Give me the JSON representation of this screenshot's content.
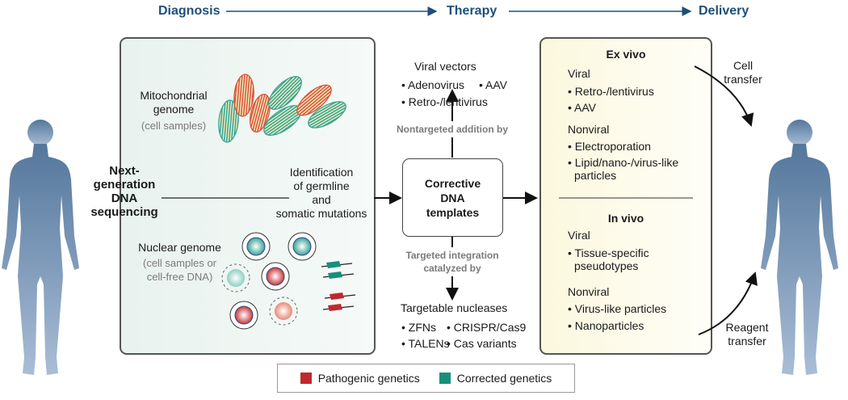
{
  "header": {
    "stages": [
      "Diagnosis",
      "Therapy",
      "Delivery"
    ]
  },
  "colors": {
    "header": "#1d4f7a",
    "pathogenic": "#c0282d",
    "corrected": "#16907a",
    "human": "#5d82a8"
  },
  "diagnosis": {
    "ngs": [
      "Next-",
      "generation",
      "DNA",
      "sequencing"
    ],
    "mito": {
      "title": [
        "Mitochondrial",
        "genome"
      ],
      "note": "(cell samples)"
    },
    "nuclear": {
      "title": "Nuclear genome",
      "note": [
        "(cell samples or",
        "cell-free DNA)"
      ]
    },
    "identification": [
      "Identification",
      "of germline",
      "and",
      "somatic mutations"
    ]
  },
  "therapy": {
    "center": [
      "Corrective",
      "DNA",
      "templates"
    ],
    "nontargeted": "Nontargeted addition by",
    "viral_vectors": {
      "title": "Viral vectors",
      "items": [
        "• Adenovirus",
        "• AAV",
        "• Retro-/lentivirus"
      ]
    },
    "targeted": [
      "Targeted integration",
      "catalyzed by"
    ],
    "nucleases": {
      "title": "Targetable nucleases",
      "items": [
        "• ZFNs",
        "• CRISPR/Cas9",
        "• TALENs",
        "• Cas variants"
      ]
    }
  },
  "delivery": {
    "ex_vivo": {
      "title": "Ex vivo",
      "viral": "Viral",
      "viral_items": [
        "• Retro-/lentivirus",
        "• AAV"
      ],
      "nonviral": "Nonviral",
      "nonviral_items": [
        "• Electroporation",
        "• Lipid/nano-/virus-like",
        "particles"
      ]
    },
    "in_vivo": {
      "title": "In vivo",
      "viral": "Viral",
      "viral_items": [
        "• Tissue-specific",
        "pseudotypes"
      ],
      "nonviral": "Nonviral",
      "nonviral_items": [
        "• Virus-like particles",
        "• Nanoparticles"
      ]
    },
    "cell_transfer": [
      "Cell",
      "transfer"
    ],
    "reagent_transfer": [
      "Reagent",
      "transfer"
    ]
  },
  "legend": [
    "Pathogenic genetics",
    "Corrected genetics"
  ]
}
